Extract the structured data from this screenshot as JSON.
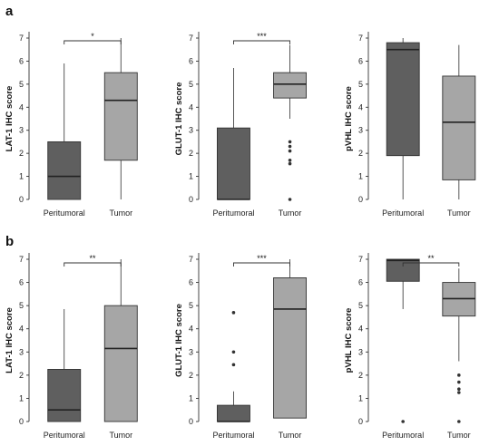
{
  "figure": {
    "panel_labels": [
      "a",
      "b"
    ]
  },
  "chart_data": [
    {
      "type": "box",
      "panel": "a",
      "ylabel": "LAT-1 IHC score",
      "categories": [
        "Peritumoral",
        "Tumor"
      ],
      "ylim": [
        0,
        7
      ],
      "yticks": [
        0,
        1,
        2,
        3,
        4,
        5,
        6,
        7
      ],
      "boxes": [
        {
          "name": "Peritumoral",
          "color": "#5f5f5f",
          "whisker_low": 0,
          "q1": 0,
          "median": 1.0,
          "q3": 2.5,
          "whisker_high": 5.9,
          "outliers": []
        },
        {
          "name": "Tumor",
          "color": "#a6a6a6",
          "whisker_low": 0,
          "q1": 1.7,
          "median": 4.3,
          "q3": 5.5,
          "whisker_high": 7.0,
          "outliers": []
        }
      ],
      "significance": "*"
    },
    {
      "type": "box",
      "panel": "a",
      "ylabel": "GLUT-1 IHC score",
      "categories": [
        "Peritumoral",
        "Tumor"
      ],
      "ylim": [
        0,
        7
      ],
      "yticks": [
        0,
        1,
        2,
        3,
        4,
        5,
        6,
        7
      ],
      "boxes": [
        {
          "name": "Peritumoral",
          "color": "#5f5f5f",
          "whisker_low": 0,
          "q1": 0,
          "median": 0,
          "q3": 3.1,
          "whisker_high": 5.7,
          "outliers": []
        },
        {
          "name": "Tumor",
          "color": "#a6a6a6",
          "whisker_low": 3.5,
          "q1": 4.4,
          "median": 5.0,
          "q3": 5.5,
          "whisker_high": 6.7,
          "outliers": [
            2.5,
            2.3,
            2.1,
            1.7,
            1.55,
            0
          ]
        }
      ],
      "significance": "***"
    },
    {
      "type": "box",
      "panel": "a",
      "ylabel": "pVHL IHC score",
      "categories": [
        "Peritumoral",
        "Tumor"
      ],
      "ylim": [
        0,
        7
      ],
      "yticks": [
        0,
        1,
        2,
        3,
        4,
        5,
        6,
        7
      ],
      "boxes": [
        {
          "name": "Peritumoral",
          "color": "#5f5f5f",
          "whisker_low": 0,
          "q1": 1.9,
          "median": 6.5,
          "q3": 6.8,
          "whisker_high": 7.0,
          "outliers": []
        },
        {
          "name": "Tumor",
          "color": "#a6a6a6",
          "whisker_low": 0,
          "q1": 0.85,
          "median": 3.35,
          "q3": 5.35,
          "whisker_high": 6.7,
          "outliers": []
        }
      ],
      "significance": ""
    },
    {
      "type": "box",
      "panel": "b",
      "ylabel": "LAT-1 IHC score",
      "categories": [
        "Peritumoral",
        "Tumor"
      ],
      "ylim": [
        0,
        7
      ],
      "yticks": [
        0,
        1,
        2,
        3,
        4,
        5,
        6,
        7
      ],
      "boxes": [
        {
          "name": "Peritumoral",
          "color": "#5f5f5f",
          "whisker_low": 0,
          "q1": 0,
          "median": 0.5,
          "q3": 2.25,
          "whisker_high": 4.85,
          "outliers": []
        },
        {
          "name": "Tumor",
          "color": "#a6a6a6",
          "whisker_low": 0,
          "q1": 0,
          "median": 3.15,
          "q3": 5.0,
          "whisker_high": 7.0,
          "outliers": []
        }
      ],
      "significance": "**"
    },
    {
      "type": "box",
      "panel": "b",
      "ylabel": "GLUT-1 IHC score",
      "categories": [
        "Peritumoral",
        "Tumor"
      ],
      "ylim": [
        0,
        7
      ],
      "yticks": [
        0,
        1,
        2,
        3,
        4,
        5,
        6,
        7
      ],
      "boxes": [
        {
          "name": "Peritumoral",
          "color": "#5f5f5f",
          "whisker_low": 0,
          "q1": 0,
          "median": 0,
          "q3": 0.7,
          "whisker_high": 1.3,
          "outliers": [
            4.7,
            3.0,
            2.45
          ]
        },
        {
          "name": "Tumor",
          "color": "#a6a6a6",
          "whisker_low": 0.15,
          "q1": 0.15,
          "median": 4.85,
          "q3": 6.2,
          "whisker_high": 7.0,
          "outliers": []
        }
      ],
      "significance": "***"
    },
    {
      "type": "box",
      "panel": "b",
      "ylabel": "pVHL IHC score",
      "categories": [
        "Peritumoral",
        "Tumor"
      ],
      "ylim": [
        0,
        7
      ],
      "yticks": [
        0,
        1,
        2,
        3,
        4,
        5,
        6,
        7
      ],
      "boxes": [
        {
          "name": "Peritumoral",
          "color": "#5f5f5f",
          "whisker_low": 4.85,
          "q1": 6.05,
          "median": 6.95,
          "q3": 7.0,
          "whisker_high": 7.0,
          "outliers": [
            0
          ]
        },
        {
          "name": "Tumor",
          "color": "#a6a6a6",
          "whisker_low": 2.6,
          "q1": 4.55,
          "median": 5.3,
          "q3": 6.0,
          "whisker_high": 6.6,
          "outliers": [
            2.0,
            1.7,
            1.4,
            1.25,
            0
          ]
        }
      ],
      "significance": "**"
    }
  ]
}
